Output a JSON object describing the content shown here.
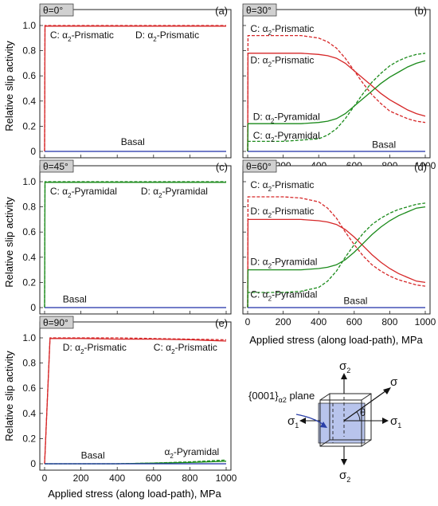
{
  "figure": {
    "ylabel": "Relative slip activity",
    "xlabel": "Applied stress (along load-path), MPa"
  },
  "schematic": {
    "plane_label": "{0001}",
    "plane_sub": "α2",
    "plane_suffix": " plane",
    "sigma": "σ",
    "sigma1": "σ",
    "sigma1_sub": "1",
    "sigma2": "σ",
    "sigma2_sub": "2",
    "theta": "θ"
  },
  "colors": {
    "prismatic": "#d62728",
    "pyramidal": "#1a8a1a",
    "basal": "#1f2fa8"
  },
  "chart_data": [
    {
      "type": "line",
      "panel": "(a)",
      "theta_label": "θ=0°",
      "xlim": [
        0,
        1000
      ],
      "ylim": [
        0,
        1
      ],
      "xticks": [
        "0",
        "200",
        "400",
        "600",
        "800",
        "1000"
      ],
      "yticks": [
        "0",
        "0.2",
        "0.4",
        "0.6",
        "0.8",
        "1.0"
      ],
      "series": [
        {
          "name": "C: α2-Prismatic",
          "color": "prismatic",
          "dashed": true,
          "x": [
            0,
            2,
            1000
          ],
          "y": [
            0,
            1,
            1
          ]
        },
        {
          "name": "D: α2-Prismatic",
          "color": "prismatic",
          "dashed": false,
          "x": [
            0,
            2,
            1000
          ],
          "y": [
            0,
            0.995,
            0.995
          ]
        },
        {
          "name": "Basal",
          "color": "basal",
          "dashed": false,
          "x": [
            0,
            1000
          ],
          "y": [
            0,
            0
          ]
        }
      ],
      "annotations": [
        {
          "text": "C: α",
          "sub": "2",
          "rest": "-Prismatic",
          "x": 30,
          "y": 0.9
        },
        {
          "text": "D: α",
          "sub": "2",
          "rest": "-Prismatic",
          "x": 500,
          "y": 0.9
        },
        {
          "text": "Basal",
          "sub": "",
          "rest": "",
          "x": 420,
          "y": 0.05
        }
      ]
    },
    {
      "type": "line",
      "panel": "(b)",
      "theta_label": "θ=30°",
      "xlim": [
        0,
        1000
      ],
      "ylim": [
        0,
        1
      ],
      "xticks": [
        "0",
        "200",
        "400",
        "600",
        "800",
        "1000"
      ],
      "yticks": [
        "0",
        "0.2",
        "0.4",
        "0.6",
        "0.8",
        "1.0"
      ],
      "series": [
        {
          "name": "C: α2-Prismatic",
          "color": "prismatic",
          "dashed": true,
          "x": [
            0,
            2,
            100,
            200,
            300,
            400,
            450,
            500,
            550,
            600,
            650,
            700,
            750,
            800,
            850,
            900,
            950,
            1000
          ],
          "y": [
            0,
            0.92,
            0.92,
            0.92,
            0.92,
            0.9,
            0.87,
            0.82,
            0.74,
            0.64,
            0.54,
            0.45,
            0.38,
            0.32,
            0.29,
            0.26,
            0.24,
            0.23
          ]
        },
        {
          "name": "D: α2-Prismatic",
          "color": "prismatic",
          "dashed": false,
          "x": [
            0,
            2,
            100,
            200,
            300,
            400,
            450,
            500,
            550,
            600,
            650,
            700,
            750,
            800,
            850,
            900,
            950,
            1000
          ],
          "y": [
            0,
            0.78,
            0.78,
            0.78,
            0.78,
            0.77,
            0.76,
            0.74,
            0.7,
            0.64,
            0.58,
            0.52,
            0.46,
            0.41,
            0.37,
            0.33,
            0.3,
            0.28
          ]
        },
        {
          "name": "D: α2-Pyramidal",
          "color": "pyramidal",
          "dashed": false,
          "x": [
            0,
            2,
            100,
            200,
            300,
            400,
            450,
            500,
            550,
            600,
            650,
            700,
            750,
            800,
            850,
            900,
            950,
            1000
          ],
          "y": [
            0,
            0.22,
            0.22,
            0.22,
            0.22,
            0.23,
            0.24,
            0.26,
            0.3,
            0.36,
            0.42,
            0.48,
            0.54,
            0.59,
            0.63,
            0.67,
            0.7,
            0.72
          ]
        },
        {
          "name": "C: α2-Pyramidal",
          "color": "pyramidal",
          "dashed": true,
          "x": [
            0,
            2,
            100,
            200,
            300,
            400,
            450,
            500,
            550,
            600,
            650,
            700,
            750,
            800,
            850,
            900,
            950,
            1000
          ],
          "y": [
            0,
            0.08,
            0.08,
            0.08,
            0.09,
            0.1,
            0.13,
            0.18,
            0.26,
            0.36,
            0.46,
            0.55,
            0.62,
            0.68,
            0.72,
            0.75,
            0.77,
            0.78
          ]
        },
        {
          "name": "Basal",
          "color": "basal",
          "dashed": false,
          "x": [
            0,
            1000
          ],
          "y": [
            0,
            0
          ]
        }
      ],
      "annotations": [
        {
          "text": "C: α",
          "sub": "2",
          "rest": "-Prismatic",
          "x": 15,
          "y": 0.95
        },
        {
          "text": "D: α",
          "sub": "2",
          "rest": "-Prismatic",
          "x": 15,
          "y": 0.7
        },
        {
          "text": "D: α",
          "sub": "2",
          "rest": "-Pyramidal",
          "x": 30,
          "y": 0.25
        },
        {
          "text": "C: α",
          "sub": "2",
          "rest": "-Pyramidal",
          "x": 30,
          "y": 0.1
        },
        {
          "text": "Basal",
          "sub": "",
          "rest": "",
          "x": 700,
          "y": 0.03
        }
      ]
    },
    {
      "type": "line",
      "panel": "(c)",
      "theta_label": "θ=45°",
      "xlim": [
        0,
        1000
      ],
      "ylim": [
        0,
        1
      ],
      "xticks": [
        "0",
        "200",
        "400",
        "600",
        "800",
        "1000"
      ],
      "yticks": [
        "0",
        "0.2",
        "0.4",
        "0.6",
        "0.8",
        "1.0"
      ],
      "series": [
        {
          "name": "C: α2-Pyramidal",
          "color": "pyramidal",
          "dashed": true,
          "x": [
            0,
            2,
            1000
          ],
          "y": [
            0,
            1,
            1
          ]
        },
        {
          "name": "D: α2-Pyramidal",
          "color": "pyramidal",
          "dashed": false,
          "x": [
            0,
            2,
            1000
          ],
          "y": [
            0,
            0.995,
            0.995
          ]
        },
        {
          "name": "Basal",
          "color": "basal",
          "dashed": false,
          "x": [
            0,
            1000
          ],
          "y": [
            0,
            0
          ]
        }
      ],
      "annotations": [
        {
          "text": "C: α",
          "sub": "2",
          "rest": "-Pyramidal",
          "x": 30,
          "y": 0.9
        },
        {
          "text": "D: α",
          "sub": "2",
          "rest": "-Pyramidal",
          "x": 530,
          "y": 0.9
        },
        {
          "text": "Basal",
          "sub": "",
          "rest": "",
          "x": 100,
          "y": 0.04
        }
      ]
    },
    {
      "type": "line",
      "panel": "(d)",
      "theta_label": "θ=60°",
      "xlim": [
        0,
        1000
      ],
      "ylim": [
        0,
        1
      ],
      "xticks": [
        "0",
        "200",
        "400",
        "600",
        "800",
        "1000"
      ],
      "yticks": [
        "0",
        "0.2",
        "0.4",
        "0.6",
        "0.8",
        "1.0"
      ],
      "series": [
        {
          "name": "C: α2-Prismatic",
          "color": "prismatic",
          "dashed": true,
          "x": [
            0,
            2,
            100,
            200,
            300,
            400,
            450,
            500,
            550,
            600,
            650,
            700,
            750,
            800,
            850,
            900,
            950,
            1000
          ],
          "y": [
            0,
            0.88,
            0.88,
            0.88,
            0.87,
            0.84,
            0.79,
            0.71,
            0.6,
            0.5,
            0.41,
            0.34,
            0.29,
            0.25,
            0.22,
            0.2,
            0.18,
            0.17
          ]
        },
        {
          "name": "D: α2-Prismatic",
          "color": "prismatic",
          "dashed": false,
          "x": [
            0,
            2,
            100,
            200,
            300,
            400,
            450,
            500,
            550,
            600,
            650,
            700,
            750,
            800,
            850,
            900,
            950,
            1000
          ],
          "y": [
            0,
            0.7,
            0.7,
            0.7,
            0.7,
            0.69,
            0.68,
            0.66,
            0.62,
            0.56,
            0.49,
            0.42,
            0.36,
            0.31,
            0.27,
            0.24,
            0.21,
            0.2
          ]
        },
        {
          "name": "D: α2-Pyramidal",
          "color": "pyramidal",
          "dashed": false,
          "x": [
            0,
            2,
            100,
            200,
            300,
            400,
            450,
            500,
            550,
            600,
            650,
            700,
            750,
            800,
            850,
            900,
            950,
            1000
          ],
          "y": [
            0,
            0.3,
            0.3,
            0.3,
            0.3,
            0.31,
            0.32,
            0.34,
            0.38,
            0.44,
            0.51,
            0.58,
            0.64,
            0.69,
            0.73,
            0.76,
            0.79,
            0.8
          ]
        },
        {
          "name": "C: α2-Pyramidal",
          "color": "pyramidal",
          "dashed": true,
          "x": [
            0,
            2,
            100,
            200,
            300,
            400,
            450,
            500,
            550,
            600,
            650,
            700,
            750,
            800,
            850,
            900,
            950,
            1000
          ],
          "y": [
            0,
            0.12,
            0.12,
            0.12,
            0.13,
            0.16,
            0.21,
            0.29,
            0.4,
            0.5,
            0.59,
            0.66,
            0.71,
            0.75,
            0.78,
            0.8,
            0.82,
            0.83
          ]
        },
        {
          "name": "Basal",
          "color": "basal",
          "dashed": false,
          "x": [
            0,
            1000
          ],
          "y": [
            0,
            0
          ]
        }
      ],
      "annotations": [
        {
          "text": "C: α",
          "sub": "2",
          "rest": "-Prismatic",
          "x": 15,
          "y": 0.95
        },
        {
          "text": "D: α",
          "sub": "2",
          "rest": "-Prismatic",
          "x": 15,
          "y": 0.74
        },
        {
          "text": "D: α",
          "sub": "2",
          "rest": "-Pyramidal",
          "x": 15,
          "y": 0.34
        },
        {
          "text": "C: α",
          "sub": "2",
          "rest": "-Pyramidal",
          "x": 15,
          "y": 0.08
        },
        {
          "text": "Basal",
          "sub": "",
          "rest": "",
          "x": 540,
          "y": 0.03
        }
      ]
    },
    {
      "type": "line",
      "panel": "(e)",
      "theta_label": "θ=90°",
      "xlim": [
        0,
        1000
      ],
      "ylim": [
        0,
        1
      ],
      "xticks": [
        "0",
        "200",
        "400",
        "600",
        "800",
        "1000"
      ],
      "yticks": [
        "0",
        "0.2",
        "0.4",
        "0.6",
        "0.8",
        "1.0"
      ],
      "series": [
        {
          "name": "C: α2-Prismatic",
          "color": "prismatic",
          "dashed": true,
          "x": [
            0,
            30,
            200,
            400,
            600,
            800,
            1000
          ],
          "y": [
            0,
            1,
            1,
            1,
            0.995,
            0.99,
            0.985
          ]
        },
        {
          "name": "D: α2-Prismatic",
          "color": "prismatic",
          "dashed": false,
          "x": [
            0,
            30,
            200,
            400,
            600,
            800,
            1000
          ],
          "y": [
            0,
            0.995,
            0.995,
            0.99,
            0.99,
            0.985,
            0.975
          ]
        },
        {
          "name": "α2-Pyramidal (D)",
          "color": "pyramidal",
          "dashed": false,
          "x": [
            0,
            400,
            600,
            800,
            1000
          ],
          "y": [
            0,
            0,
            0.005,
            0.01,
            0.02
          ]
        },
        {
          "name": "α2-Pyramidal (C)",
          "color": "pyramidal",
          "dashed": true,
          "x": [
            0,
            400,
            600,
            800,
            1000
          ],
          "y": [
            0,
            0,
            0.006,
            0.015,
            0.03
          ]
        },
        {
          "name": "Basal",
          "color": "basal",
          "dashed": false,
          "x": [
            0,
            1000
          ],
          "y": [
            0,
            0
          ]
        }
      ],
      "annotations": [
        {
          "text": "D: α",
          "sub": "2",
          "rest": "-Prismatic",
          "x": 100,
          "y": 0.9
        },
        {
          "text": "C: α",
          "sub": "2",
          "rest": "-Prismatic",
          "x": 600,
          "y": 0.9
        },
        {
          "text": "α",
          "sub": "2",
          "rest": "-Pyramidal",
          "x": 660,
          "y": 0.07
        },
        {
          "text": "Basal",
          "sub": "",
          "rest": "",
          "x": 200,
          "y": 0.04
        }
      ]
    }
  ]
}
